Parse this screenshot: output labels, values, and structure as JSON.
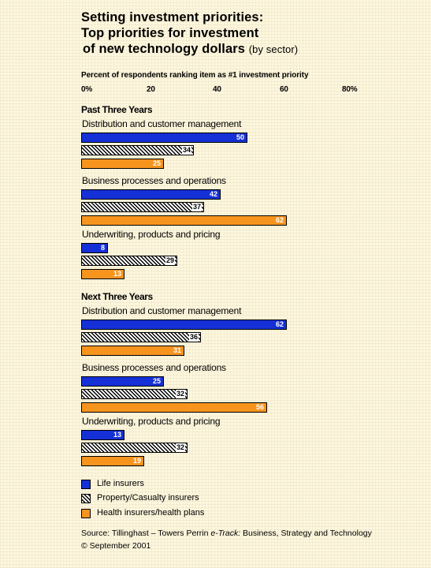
{
  "title": {
    "line1": "Setting investment priorities:",
    "line2": "Top priorities for investment",
    "line3_main": "of new technology dollars",
    "line3_suffix": "(by sector)"
  },
  "footer": {
    "source_prefix": "Source: Tillinghast – Towers Perrin ",
    "source_italic": "e-Track:",
    "source_suffix": " Business, Strategy and Technology",
    "copyright": "© September 2001"
  },
  "colors": {
    "life": "#1530d6",
    "pc_hatch": "#000000",
    "health": "#f7941e"
  },
  "chart_data": {
    "type": "bar",
    "orientation": "horizontal",
    "xlabel": "Percent of respondents ranking item as #1 investment priority",
    "xlim": [
      0,
      80
    ],
    "ticks": [
      "0%",
      "20",
      "40",
      "60",
      "80%"
    ],
    "legend_position": "bottom-left",
    "legend": [
      "Life insurers",
      "Property/Casualty insurers",
      "Health insurers/health plans"
    ],
    "sections": [
      {
        "title": "Past Three Years",
        "groups": [
          {
            "label": "Distribution and customer management",
            "values": [
              50,
              34,
              25
            ]
          },
          {
            "label": "Business processes and operations",
            "values": [
              42,
              37,
              62
            ]
          },
          {
            "label": "Underwriting, products and pricing",
            "values": [
              8,
              29,
              13
            ]
          }
        ]
      },
      {
        "title": "Next Three Years",
        "groups": [
          {
            "label": "Distribution and customer management",
            "values": [
              62,
              36,
              31
            ]
          },
          {
            "label": "Business processes and operations",
            "values": [
              25,
              32,
              56
            ]
          },
          {
            "label": "Underwriting, products and pricing",
            "values": [
              13,
              32,
              19
            ]
          }
        ]
      }
    ]
  }
}
